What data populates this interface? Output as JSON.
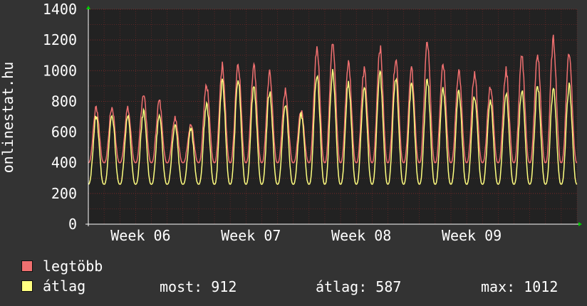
{
  "chart_data": {
    "type": "line",
    "ylabel": "onlinestat.hu",
    "ylim": [
      0,
      1400
    ],
    "yticks": [
      0,
      200,
      400,
      600,
      800,
      1000,
      1200,
      1400
    ],
    "xlabels": [
      "Week 06",
      "Week 07",
      "Week 08",
      "Week 09"
    ],
    "x_unit": "days",
    "x_range": [
      0,
      31
    ],
    "week_label_positions_days": [
      3,
      10,
      17,
      24
    ],
    "grid": true,
    "series": [
      {
        "name": "legtöbb",
        "color": "#f07070",
        "daily_peaks": [
          760,
          760,
          750,
          850,
          800,
          700,
          650,
          900,
          1030,
          1050,
          1020,
          980,
          870,
          750,
          1150,
          1200,
          1050,
          1000,
          1150,
          1080,
          1000,
          1180,
          1050,
          1000,
          980,
          900,
          1000,
          1080,
          1100,
          1200,
          1120
        ]
      },
      {
        "name": "átlag",
        "color": "#ffff80",
        "daily_peaks": [
          700,
          710,
          700,
          730,
          700,
          650,
          620,
          780,
          920,
          940,
          900,
          860,
          780,
          720,
          980,
          1000,
          920,
          880,
          980,
          940,
          900,
          940,
          880,
          860,
          840,
          800,
          850,
          880,
          900,
          880,
          900
        ]
      }
    ],
    "typical_min_max": 400,
    "typical_min_avg": 260
  },
  "legend": {
    "max_label": "legtöbb",
    "avg_label": "átlag",
    "current_text": "most: 912",
    "average_text": "átlag: 587",
    "maximum_text": "max: 1012"
  }
}
